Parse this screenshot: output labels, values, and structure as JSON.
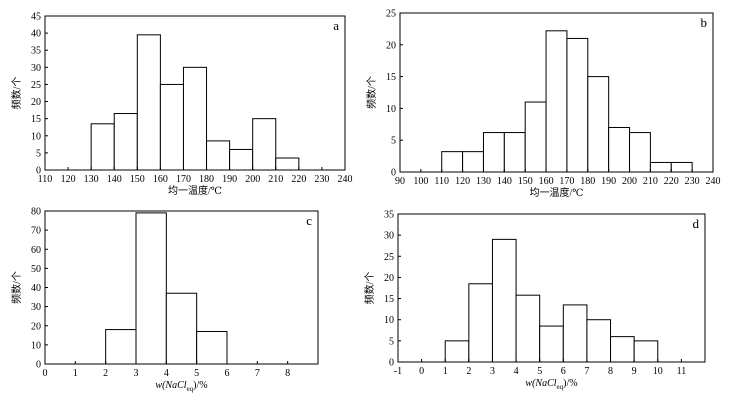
{
  "chart_data": [
    {
      "type": "bar",
      "panel_label": "a",
      "xlabel": "均一温度/℃",
      "ylabel": "频数/个",
      "xlim": [
        110,
        240
      ],
      "ylim": [
        0,
        45
      ],
      "xticks": [
        110,
        120,
        130,
        140,
        150,
        160,
        170,
        180,
        190,
        200,
        210,
        220,
        230,
        240
      ],
      "yticks": [
        0,
        5,
        10,
        15,
        20,
        25,
        30,
        35,
        40,
        45
      ],
      "bin_width": 10,
      "bins": [
        130,
        140,
        150,
        160,
        170,
        180,
        190,
        200,
        210
      ],
      "values": [
        13.5,
        16.5,
        39.5,
        25,
        30,
        8.5,
        6,
        15,
        3.5
      ]
    },
    {
      "type": "bar",
      "panel_label": "b",
      "xlabel": "均一温度/℃",
      "ylabel": "频数/个",
      "xlim": [
        90,
        240
      ],
      "ylim": [
        0,
        25
      ],
      "xticks": [
        90,
        100,
        110,
        120,
        130,
        140,
        150,
        160,
        170,
        180,
        190,
        200,
        210,
        220,
        230,
        240
      ],
      "yticks": [
        0,
        5,
        10,
        15,
        20,
        25
      ],
      "bin_width": 10,
      "bins": [
        110,
        120,
        130,
        140,
        150,
        160,
        170,
        180,
        190,
        200,
        210,
        220
      ],
      "values": [
        3.2,
        3.2,
        6.2,
        6.2,
        11,
        22.2,
        21,
        15,
        7,
        6.2,
        1.5,
        1.5
      ]
    },
    {
      "type": "bar",
      "panel_label": "c",
      "xlabel": "w(NaCl",
      "xlabel_sub": "eq",
      "xlabel_tail": ")/%",
      "ylabel": "频数/个",
      "xlim": [
        0,
        9
      ],
      "ylim": [
        0,
        80
      ],
      "xticks": [
        0,
        1,
        2,
        3,
        4,
        5,
        6,
        7,
        8
      ],
      "yticks": [
        0,
        10,
        20,
        30,
        40,
        50,
        60,
        70,
        80
      ],
      "bin_width": 1,
      "bins": [
        2,
        3,
        4,
        5
      ],
      "values": [
        18,
        79,
        37,
        17
      ]
    },
    {
      "type": "bar",
      "panel_label": "d",
      "xlabel": "w(NaCl",
      "xlabel_sub": "eq",
      "xlabel_tail": ")/%",
      "ylabel": "频数/个",
      "xlim": [
        -1,
        12
      ],
      "ylim": [
        0,
        35
      ],
      "xticks": [
        -1,
        0,
        1,
        2,
        3,
        4,
        5,
        6,
        7,
        8,
        9,
        10,
        11
      ],
      "yticks": [
        0,
        5,
        10,
        15,
        20,
        25,
        30,
        35
      ],
      "bin_width": 1,
      "bins": [
        1,
        2,
        3,
        4,
        5,
        6,
        7,
        8,
        9
      ],
      "values": [
        5,
        18.5,
        29,
        15.8,
        8.5,
        13.5,
        10,
        6,
        5
      ]
    }
  ]
}
